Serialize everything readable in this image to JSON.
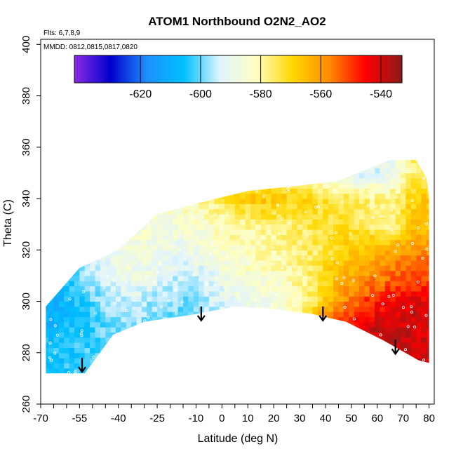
{
  "chart_data": {
    "type": "heatmap",
    "title": "ATOM1 Northbound O2N2_AO2",
    "annotation_flights": "Flts: 6,7,8,9",
    "annotation_dates": "MMDD: 0812,0815,0817,0820",
    "xlabel": "Latitude (deg N)",
    "ylabel": "Theta (C)",
    "xlim": [
      -70,
      82
    ],
    "ylim": [
      260,
      402
    ],
    "x_ticks": [
      -70,
      -55,
      -40,
      -25,
      -10,
      0,
      10,
      20,
      30,
      40,
      50,
      60,
      70,
      80
    ],
    "y_ticks": [
      260,
      280,
      300,
      320,
      340,
      360,
      380,
      400
    ],
    "colorbar": {
      "range": [
        -642,
        -533
      ],
      "ticks": [
        -620,
        -600,
        -580,
        -560,
        -540
      ],
      "placement": "top-inside",
      "colors": [
        "#8a2be2",
        "#0000cd",
        "#1e90ff",
        "#00bfff",
        "#e0f4ff",
        "#ffffc0",
        "#ffd700",
        "#ff8c00",
        "#ff0000",
        "#8b1a1a"
      ]
    },
    "coverage_boundary": {
      "lower": [
        [
          -68,
          272
        ],
        [
          -53,
          272
        ],
        [
          -50,
          276
        ],
        [
          -42,
          287
        ],
        [
          -30,
          292
        ],
        [
          -10,
          295
        ],
        [
          5,
          298
        ],
        [
          20,
          297
        ],
        [
          35,
          295
        ],
        [
          48,
          292
        ],
        [
          62,
          285
        ],
        [
          76,
          277
        ],
        [
          80,
          276
        ]
      ],
      "upper": [
        [
          80,
          340
        ],
        [
          79,
          348
        ],
        [
          75,
          355
        ],
        [
          65,
          355
        ],
        [
          45,
          347
        ],
        [
          30,
          345
        ],
        [
          10,
          343
        ],
        [
          -10,
          338
        ],
        [
          -25,
          334
        ],
        [
          -40,
          320
        ],
        [
          -55,
          313
        ],
        [
          -68,
          298
        ]
      ]
    },
    "value_field": {
      "note_lat": [
        -65,
        -55,
        -45,
        -35,
        -25,
        -15,
        -5,
        5,
        15,
        25,
        35,
        45,
        55,
        65,
        75
      ],
      "theta_levels": [
        280,
        290,
        300,
        310,
        320,
        330,
        340,
        350
      ],
      "values": [
        [
          -605,
          -603,
          -600,
          -598,
          -596,
          -594,
          -592,
          -590,
          -588,
          -580,
          -560,
          -548,
          -542,
          -538,
          -540
        ],
        [
          -608,
          -604,
          -600,
          -598,
          -600,
          -598,
          -595,
          -592,
          -588,
          -584,
          -565,
          -548,
          -542,
          -538,
          -540
        ],
        [
          -610,
          -604,
          -598,
          -594,
          -597,
          -600,
          -596,
          -590,
          -588,
          -584,
          -575,
          -560,
          -550,
          -545,
          -542
        ],
        [
          -606,
          -600,
          -592,
          -588,
          -590,
          -595,
          -592,
          -586,
          -584,
          -582,
          -575,
          -565,
          -560,
          -555,
          -552
        ],
        [
          -600,
          -595,
          -590,
          -586,
          -588,
          -590,
          -586,
          -582,
          -580,
          -578,
          -576,
          -570,
          -565,
          -562,
          -558
        ],
        [
          -598,
          -594,
          -590,
          -586,
          -586,
          -585,
          -582,
          -580,
          -578,
          -576,
          -574,
          -572,
          -575,
          -580,
          -566
        ],
        [
          -596,
          -592,
          -588,
          -585,
          -584,
          -582,
          -578,
          -570,
          -566,
          -568,
          -570,
          -574,
          -576,
          -578,
          -568
        ],
        [
          -596,
          -592,
          -588,
          -585,
          -584,
          -582,
          -578,
          -575,
          -572,
          -580,
          -585,
          -592,
          -594,
          -590,
          -575
        ]
      ]
    },
    "arrows": [
      {
        "lat": -54,
        "theta": 278
      },
      {
        "lat": -8,
        "theta": 298
      },
      {
        "lat": 39,
        "theta": 298
      },
      {
        "lat": 67,
        "theta": 285
      }
    ],
    "grid": false,
    "legend": "none"
  }
}
